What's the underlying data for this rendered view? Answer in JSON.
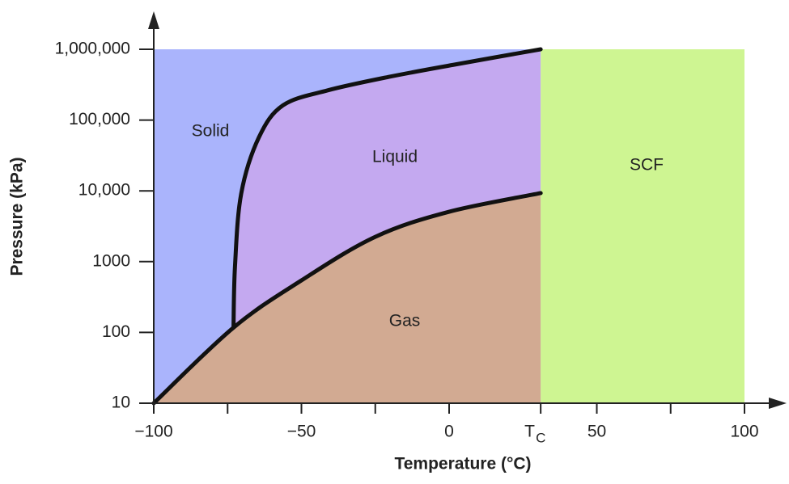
{
  "chart_data": {
    "type": "phase-diagram",
    "x_label": "Temperature (°C)",
    "y_label": "Pressure (kPa)",
    "xlim": [
      -100,
      100
    ],
    "xticks": [
      -100,
      -50,
      0,
      {
        "value": 31,
        "label": "T",
        "label_subscript": "C"
      },
      50,
      100
    ],
    "xminorticks": [
      -75,
      -25,
      75
    ],
    "ylim": [
      10,
      1000000
    ],
    "y_scale": "log",
    "yticks": [
      10,
      100,
      1000,
      {
        "value": 10000,
        "label": "10,000"
      },
      {
        "value": 100000,
        "label": "100,000"
      },
      {
        "value": 1000000,
        "label": "1,000,000"
      }
    ],
    "regions": [
      {
        "label": "Solid",
        "color": "#aab4fc"
      },
      {
        "label": "Liquid",
        "color": "#c4a9f0"
      },
      {
        "label": "Gas",
        "color": "#d2aa92"
      },
      {
        "label": "SCF",
        "color": "#cef592"
      }
    ],
    "curves": [
      {
        "x": [
          -100,
          -73,
          -50,
          -25,
          0,
          31
        ],
        "y": [
          10,
          117,
          543,
          2240,
          5070,
          9300
        ]
      },
      {
        "x": [
          -73,
          -72.5,
          -70.4,
          -64.4,
          -56.2,
          -41.1,
          -20.5,
          1.4,
          31
        ],
        "y": [
          117,
          850,
          9100,
          57000,
          162000,
          263000,
          407000,
          603000,
          1000000
        ]
      }
    ],
    "curve_color": "#111111"
  }
}
